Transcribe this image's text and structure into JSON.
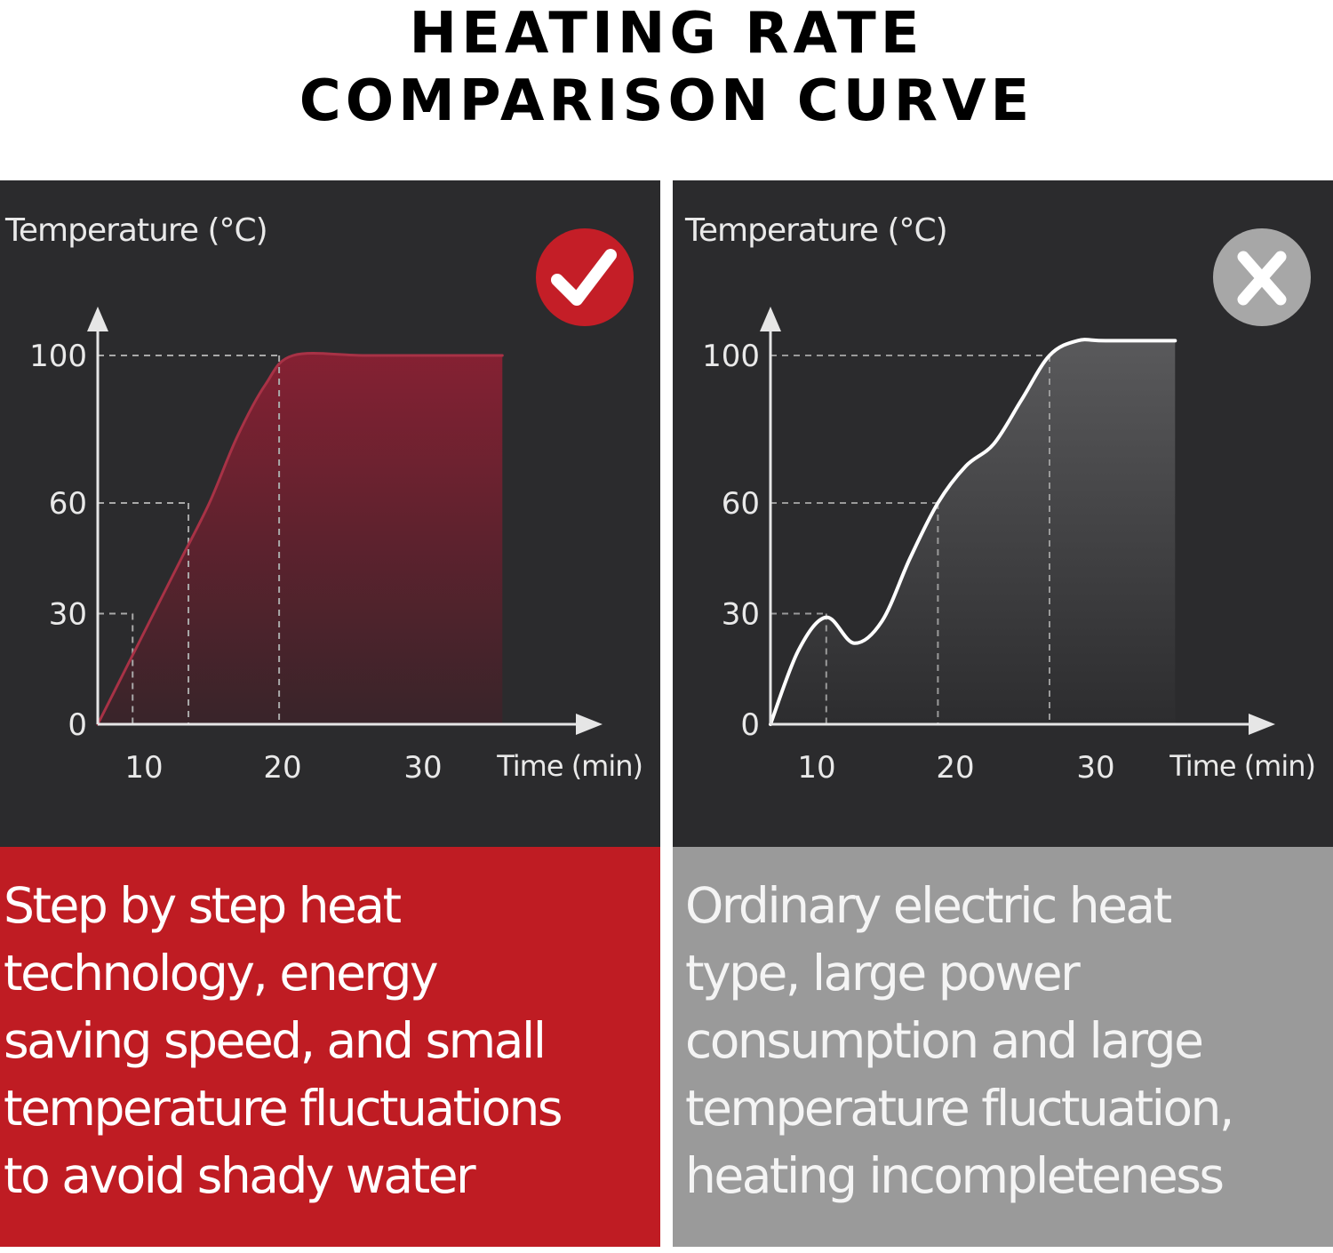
{
  "title": {
    "line1": "HEATING RATE",
    "line2": "COMPARISON CURVE"
  },
  "colors": {
    "good": "#bf1c23",
    "bad": "#9a9a9a",
    "panel_bg": "#2b2b2d"
  },
  "chart_data": [
    {
      "type": "area",
      "ylabel": "Temperature (°C)",
      "xlabel": "Time (min)",
      "x_ticks": [
        "10",
        "20",
        "30"
      ],
      "y_ticks": [
        "0",
        "30",
        "60",
        "100"
      ],
      "badge": "check-icon",
      "series": [
        {
          "x": [
            6,
            8,
            10,
            12,
            14,
            16,
            18,
            20,
            25,
            30,
            35
          ],
          "values": [
            0,
            15,
            30,
            45,
            60,
            78,
            92,
            100,
            100,
            100,
            100
          ]
        }
      ],
      "reference_points": [
        {
          "x": 8.5,
          "y": 30
        },
        {
          "x": 12.5,
          "y": 60
        },
        {
          "x": 19,
          "y": 100
        }
      ]
    },
    {
      "type": "line",
      "ylabel": "Temperature (°C)",
      "xlabel": "Time (min)",
      "x_ticks": [
        "10",
        "20",
        "30"
      ],
      "y_ticks": [
        "0",
        "30",
        "60",
        "100"
      ],
      "badge": "x-icon",
      "series": [
        {
          "x": [
            6,
            8,
            10,
            12,
            14,
            16,
            18,
            20,
            22,
            24,
            26,
            28,
            30,
            35
          ],
          "values": [
            0,
            20,
            29,
            22,
            28,
            45,
            60,
            70,
            76,
            88,
            100,
            104,
            104,
            104
          ]
        }
      ],
      "reference_points": [
        {
          "x": 10,
          "y": 30
        },
        {
          "x": 18,
          "y": 60
        },
        {
          "x": 26,
          "y": 100
        }
      ]
    }
  ],
  "descriptions": {
    "left": [
      "Step by step heat",
      "technology, energy",
      "saving speed, and small",
      "temperature fluctuations",
      "to avoid shady water"
    ],
    "right": [
      "Ordinary electric heat",
      "type, large power",
      "consumption and large",
      "temperature fluctuation,",
      "heating incompleteness"
    ]
  }
}
